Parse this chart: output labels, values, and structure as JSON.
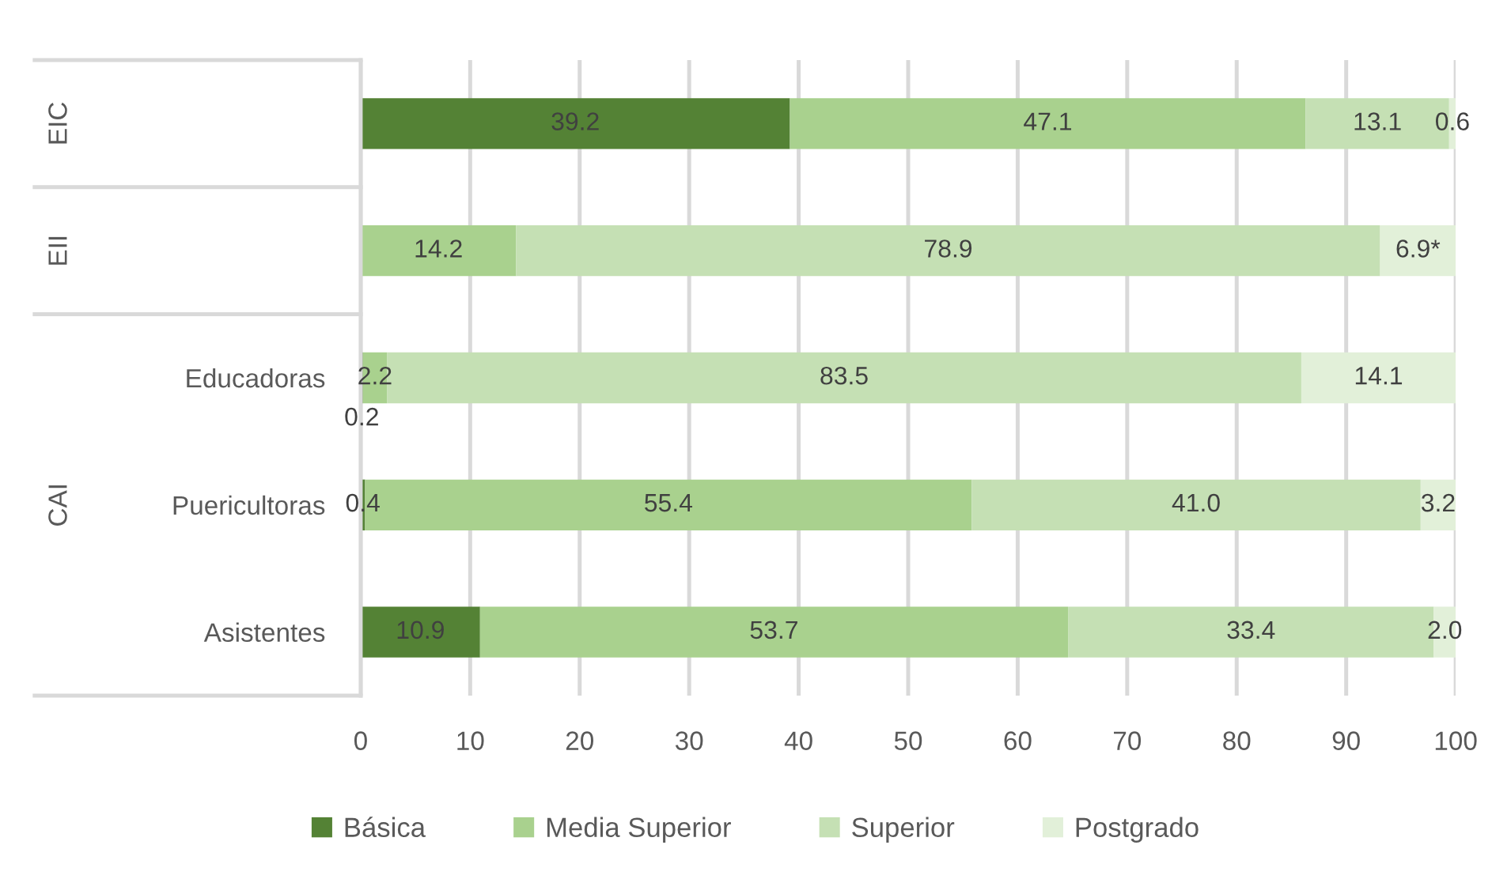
{
  "chart_data": {
    "type": "bar",
    "orientation": "horizontal",
    "stacked": true,
    "categories": [
      null,
      null,
      "Educadoras",
      "Puericultoras",
      "Asistentes"
    ],
    "series": [
      {
        "name": "Básica",
        "color": "#548235",
        "values": [
          39.2,
          null,
          0.2,
          0.4,
          10.9
        ],
        "value_labels": [
          "39.2",
          null,
          "0.2",
          "0.4",
          "10.9"
        ]
      },
      {
        "name": "Media Superior",
        "color": "#a9d18e",
        "values": [
          47.1,
          14.2,
          2.2,
          55.4,
          53.7
        ],
        "value_labels": [
          "47.1",
          "14.2",
          "2.2",
          "55.4",
          "53.7"
        ]
      },
      {
        "name": "Superior",
        "color": "#c5e0b4",
        "values": [
          13.1,
          78.9,
          83.5,
          41.0,
          33.4
        ],
        "value_labels": [
          "13.1",
          "78.9",
          "83.5",
          "41.0",
          "33.4"
        ]
      },
      {
        "name": "Postgrado",
        "color": "#e2f0d9",
        "values": [
          0.6,
          6.9,
          14.1,
          3.2,
          2.0
        ],
        "value_labels": [
          "0.6",
          "6.9*",
          "14.1",
          "3.2",
          "2.0"
        ]
      }
    ],
    "xlim": [
      0,
      100
    ],
    "xticks": [
      0,
      10,
      20,
      30,
      40,
      50,
      60,
      70,
      80,
      90,
      100
    ],
    "grid": "x",
    "legend": "bottom",
    "annotations": [
      "EIC",
      "EII",
      "CAI"
    ]
  }
}
